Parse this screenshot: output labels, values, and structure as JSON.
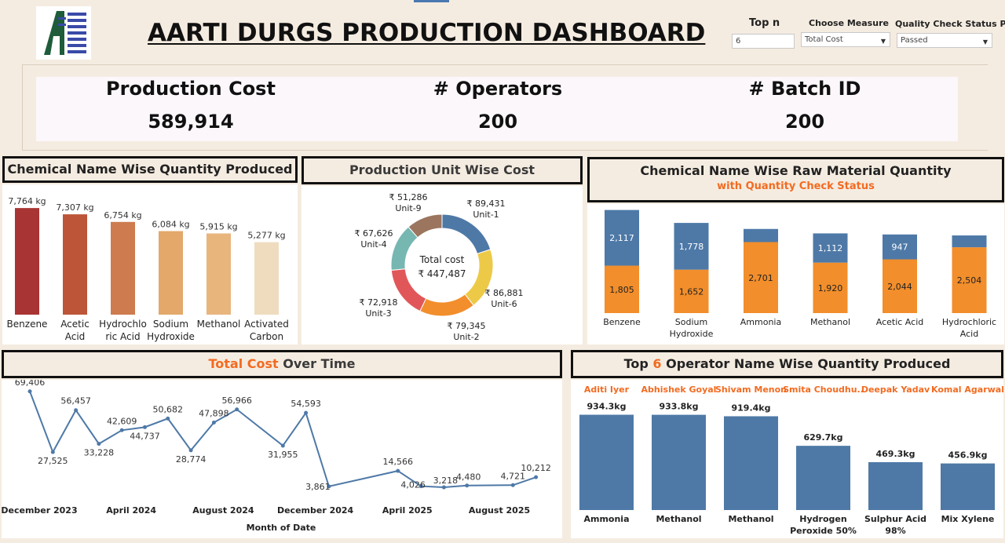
{
  "dashboard": {
    "title": "AARTI DURGS PRODUCTION DASHBOARD"
  },
  "filters": {
    "top_n_label": "Top n",
    "top_n_value": "6",
    "measure_label": "Choose Measure",
    "measure_value": "Total Cost",
    "qc_label": "Quality Check Status P..",
    "qc_value": "Passed"
  },
  "kpis": [
    {
      "label": "Production Cost",
      "value": "589,914"
    },
    {
      "label": "# Operators",
      "value": "200"
    },
    {
      "label": "# Batch ID",
      "value": "200"
    }
  ],
  "panels": {
    "qty_title": "Chemical Name Wise Quantity Produced",
    "unit_title": "Production Unit Wise Cost",
    "raw_title": "Chemical Name Wise Raw Material Quantity",
    "raw_subtitle": "with Quantity Check Status",
    "time_title_accent": "Total Cost",
    "time_title_rest": " Over Time",
    "op_title_pre": "Top ",
    "op_title_accent": "6",
    "op_title_post": " Operator Name Wise Quantity Produced"
  },
  "colors": {
    "accent": "#f26b21",
    "blue": "#4e79a7",
    "orange": "#f28e2b",
    "line": "#4e79a7"
  },
  "chart_data": [
    {
      "type": "bar",
      "title": "Chemical Name Wise Quantity Produced",
      "categories": [
        "Benzene",
        "Acetic Acid",
        "Hydrochloric Acid",
        "Sodium Hydroxide",
        "Methanol",
        "Activated Carbon"
      ],
      "category_lines": [
        [
          "Benzene"
        ],
        [
          "Acetic",
          "Acid"
        ],
        [
          "Hydrochlo",
          "ric Acid"
        ],
        [
          "Sodium",
          "Hydroxide"
        ],
        [
          "Methanol"
        ],
        [
          "Activated",
          "Carbon"
        ]
      ],
      "values": [
        7764,
        7307,
        6754,
        6084,
        5915,
        5277
      ],
      "labels": [
        "7,764 kg",
        "7,307 kg",
        "6,754 kg",
        "6,084 kg",
        "5,915 kg",
        "5,277 kg"
      ],
      "colors": [
        "#a93434",
        "#bd5538",
        "#cd7b4f",
        "#e3a86a",
        "#e8b57d",
        "#efdcbf"
      ],
      "ylim": [
        0,
        8000
      ]
    },
    {
      "type": "pie",
      "title": "Production Unit Wise Cost",
      "center_label": "Total cost",
      "center_value": "₹ 447,487",
      "slices": [
        {
          "name": "Unit-1",
          "value": 89431,
          "label": "₹ 89,431",
          "color": "#4e79a7"
        },
        {
          "name": "Unit-6",
          "value": 86881,
          "label": "₹ 86,881",
          "color": "#edc948"
        },
        {
          "name": "Unit-2",
          "value": 79345,
          "label": "₹ 79,345",
          "color": "#f28e2b"
        },
        {
          "name": "Unit-3",
          "value": 72918,
          "label": "₹ 72,918",
          "color": "#e15759"
        },
        {
          "name": "Unit-4",
          "value": 67626,
          "label": "₹ 67,626",
          "color": "#76b7b2"
        },
        {
          "name": "Unit-9",
          "value": 51286,
          "label": "₹ 51,286",
          "color": "#9c755f"
        }
      ]
    },
    {
      "type": "bar",
      "title": "Chemical Name Wise Raw Material Quantity",
      "subtitle": "with Quantity Check Status",
      "categories": [
        "Benzene",
        "Sodium Hydroxide",
        "Ammonia",
        "Methanol",
        "Acetic Acid",
        "Hydrochloric Acid"
      ],
      "category_lines": [
        [
          "Benzene"
        ],
        [
          "Sodium",
          "Hydroxide"
        ],
        [
          "Ammonia"
        ],
        [
          "Methanol"
        ],
        [
          "Acetic Acid"
        ],
        [
          "Hydrochloric",
          "Acid"
        ]
      ],
      "series": [
        {
          "color": "#f28e2b",
          "values": [
            1805,
            1652,
            2701,
            1920,
            2044,
            2504
          ],
          "labels": [
            "1,805",
            "1,652",
            "2,701",
            "1,920",
            "2,044",
            "2,504"
          ]
        },
        {
          "color": "#4e79a7",
          "values": [
            2117,
            1778,
            500,
            1112,
            947,
            450
          ],
          "labels": [
            "2,117",
            "1,778",
            "",
            "1,112",
            "947",
            ""
          ]
        }
      ],
      "ylim": [
        0,
        4000
      ]
    },
    {
      "type": "line",
      "title": "Total Cost Over Time",
      "xlabel": "Month of Date",
      "x": [
        "2023-12",
        "2024-01",
        "2024-02",
        "2024-03",
        "2024-04",
        "2024-05",
        "2024-06",
        "2024-07",
        "2024-08",
        "2024-09",
        "2024-10",
        "2024-11",
        "2024-12",
        "2025-01",
        "2025-02",
        "2025-03",
        "2025-04",
        "2025-05",
        "2025-06",
        "2025-07",
        "2025-08",
        "2025-09",
        "2025-10"
      ],
      "y": [
        69406,
        27525,
        56457,
        33228,
        42609,
        44737,
        50682,
        28774,
        47898,
        56966,
        null,
        31955,
        54593,
        3861,
        null,
        null,
        14566,
        4026,
        3218,
        4480,
        null,
        4721,
        10212
      ],
      "labels": [
        "69,406",
        "27,525",
        "56,457",
        "33,228",
        "42,609",
        "44,737",
        "50,682",
        "28,774",
        "47,898",
        "56,966",
        "",
        "31,955",
        "54,593",
        "3,861",
        "",
        "",
        "14,566",
        "4,026",
        "3,218",
        "4,480",
        "",
        "4,721",
        "10,212"
      ],
      "tick_labels": [
        {
          "label": "December 2023",
          "index": 0
        },
        {
          "label": "April 2024",
          "index": 4
        },
        {
          "label": "August 2024",
          "index": 8
        },
        {
          "label": "December 2024",
          "index": 12
        },
        {
          "label": "April 2025",
          "index": 16
        },
        {
          "label": "August 2025",
          "index": 20
        }
      ],
      "ylim": [
        0,
        72000
      ]
    },
    {
      "type": "bar",
      "title": "Top 6 Operator Name Wise Quantity Produced",
      "operators": [
        "Aditi Iyer",
        "Abhishek Goyal",
        "Shivam Menon",
        "Smita Choudhu..",
        "Deepak Yadav",
        "Komal Agarwal"
      ],
      "categories": [
        "Ammonia",
        "Methanol",
        "Methanol",
        "Hydrogen Peroxide 50%",
        "Sulphur Acid 98%",
        "Mix Xylene"
      ],
      "category_lines": [
        [
          "Ammonia"
        ],
        [
          "Methanol"
        ],
        [
          "Methanol"
        ],
        [
          "Hydrogen",
          "Peroxide 50%"
        ],
        [
          "Sulphur Acid",
          "98%"
        ],
        [
          "Mix Xylene"
        ]
      ],
      "values": [
        934.3,
        933.8,
        919.4,
        629.7,
        469.3,
        456.9
      ],
      "labels": [
        "934.3kg",
        "933.8kg",
        "919.4kg",
        "629.7kg",
        "469.3kg",
        "456.9kg"
      ],
      "ylim": [
        0,
        1000
      ]
    }
  ]
}
